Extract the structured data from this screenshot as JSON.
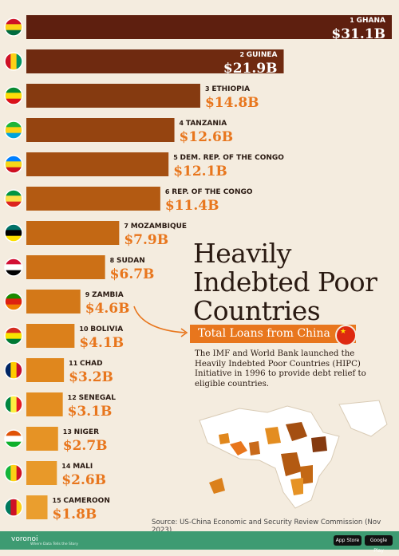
{
  "chart_data": {
    "type": "bar",
    "orientation": "horizontal",
    "title": "Heavily Indebted Poor Countries",
    "subtitle": "Total Loans from China",
    "categories": [
      "GHANA",
      "GUINEA",
      "ETHIOPIA",
      "TANZANIA",
      "DEM. REP. OF THE CONGO",
      "REP. OF THE CONGO",
      "MOZAMBIQUE",
      "SUDAN",
      "ZAMBIA",
      "BOLIVIA",
      "CHAD",
      "SENEGAL",
      "NIGER",
      "MALI",
      "CAMEROON"
    ],
    "ranks": [
      "1",
      "2",
      "3",
      "4",
      "5",
      "6",
      "7",
      "8",
      "9",
      "10",
      "11",
      "12",
      "13",
      "14",
      "15"
    ],
    "values": [
      31.1,
      21.9,
      14.8,
      12.6,
      12.1,
      11.4,
      7.9,
      6.7,
      4.6,
      4.1,
      3.2,
      3.1,
      2.7,
      2.6,
      1.8
    ],
    "value_labels": [
      "$31.1B",
      "$21.9B",
      "$14.8B",
      "$12.6B",
      "$12.1B",
      "$11.4B",
      "$7.9B",
      "$6.7B",
      "$4.6B",
      "$4.1B",
      "$3.2B",
      "$3.1B",
      "$2.7B",
      "$2.6B",
      "$1.8B"
    ],
    "bar_colors": [
      "#5e1f0f",
      "#6f2a10",
      "#853a10",
      "#954410",
      "#a44f11",
      "#b35a12",
      "#c36814",
      "#cc7016",
      "#d37818",
      "#db801b",
      "#e0871d",
      "#e38d21",
      "#e69325",
      "#e89929",
      "#ea9e2e"
    ],
    "xlim": [
      0,
      31.1
    ]
  },
  "description": "The IMF and World Bank launched the Heavily Indebted Poor Countries (HIPC) Initiative in 1996 to provide debt relief to eligible countries.",
  "source": "Source: US-China Economic and Security Review Commission (Nov 2023)",
  "footer": {
    "brand": "voronoi",
    "tagline": "Where Data Tells the Story",
    "app_store": "App Store",
    "google_play": "Google Play"
  },
  "colors": {
    "accent": "#e8761d",
    "dark_text": "#2a1a12",
    "background": "#f4ecdf",
    "footer": "#3e9b72"
  }
}
